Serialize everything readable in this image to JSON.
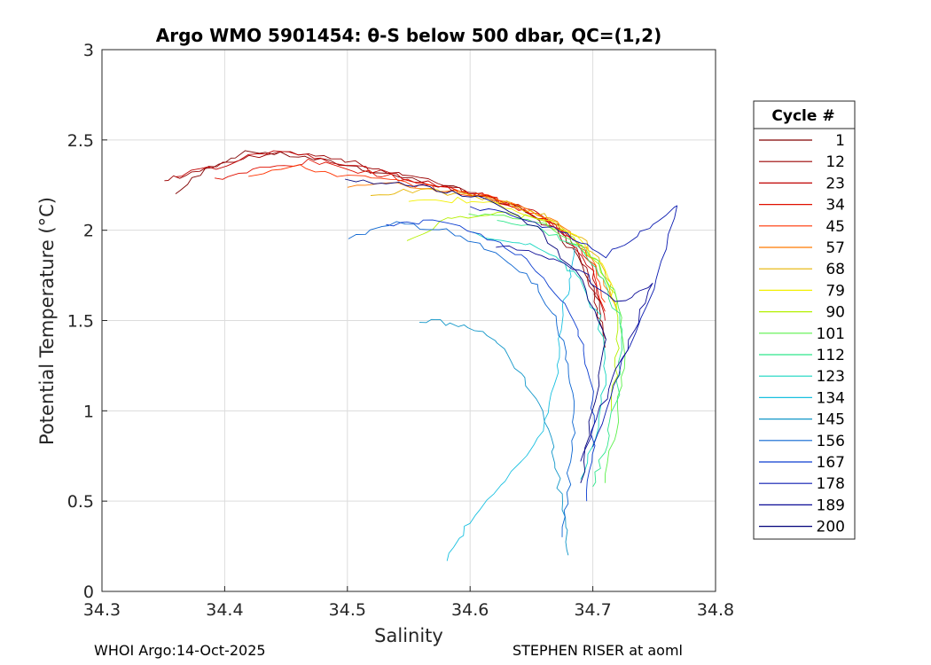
{
  "footer": {
    "left": "WHOI Argo:14-Oct-2025",
    "right": "STEPHEN RISER at aoml"
  },
  "chart_data": {
    "type": "line",
    "title": "Argo WMO 5901454: θ-S below 500 dbar,  QC=(1,2)",
    "xlabel": "Salinity",
    "ylabel": "Potential Temperature (°C)",
    "xlim": [
      34.3,
      34.8
    ],
    "ylim": [
      0,
      3
    ],
    "xticks": [
      "34.3",
      "34.4",
      "34.5",
      "34.6",
      "34.7",
      "34.8"
    ],
    "yticks": [
      "0",
      "0.5",
      "1",
      "1.5",
      "2",
      "2.5",
      "3"
    ],
    "grid": true,
    "legend": {
      "title": "Cycle #",
      "placement": "right-outside",
      "entries": [
        {
          "label": "1",
          "color": "#800000"
        },
        {
          "label": "12",
          "color": "#9a0000"
        },
        {
          "label": "23",
          "color": "#c00000"
        },
        {
          "label": "34",
          "color": "#e01000"
        },
        {
          "label": "45",
          "color": "#ff3300"
        },
        {
          "label": "57",
          "color": "#ff7a00"
        },
        {
          "label": "68",
          "color": "#e6b400"
        },
        {
          "label": "79",
          "color": "#f2f000"
        },
        {
          "label": "90",
          "color": "#b4f000"
        },
        {
          "label": "101",
          "color": "#5af04a"
        },
        {
          "label": "112",
          "color": "#2ee68c"
        },
        {
          "label": "123",
          "color": "#16d6c0"
        },
        {
          "label": "134",
          "color": "#18c0e0"
        },
        {
          "label": "145",
          "color": "#1096c8"
        },
        {
          "label": "156",
          "color": "#0a64d0"
        },
        {
          "label": "167",
          "color": "#0a3cd0"
        },
        {
          "label": "178",
          "color": "#0a1ab0"
        },
        {
          "label": "189",
          "color": "#0a0a96"
        },
        {
          "label": "200",
          "color": "#00007a"
        }
      ]
    },
    "series": [
      {
        "name": "1",
        "color": "#800000",
        "s": [
          34.36,
          34.39,
          34.42,
          34.46,
          34.5,
          34.54,
          34.58,
          34.61,
          34.64,
          34.67,
          34.69,
          34.705,
          34.71
        ],
        "t": [
          2.2,
          2.36,
          2.44,
          2.41,
          2.36,
          2.3,
          2.24,
          2.19,
          2.12,
          2.0,
          1.84,
          1.62,
          1.35
        ]
      },
      {
        "name": "12",
        "color": "#9a0000",
        "s": [
          34.35,
          34.38,
          34.42,
          34.46,
          34.5,
          34.54,
          34.58,
          34.61,
          34.64,
          34.67,
          34.69,
          34.7,
          34.71
        ],
        "t": [
          2.27,
          2.33,
          2.4,
          2.43,
          2.38,
          2.32,
          2.25,
          2.2,
          2.13,
          2.02,
          1.86,
          1.65,
          1.4
        ]
      },
      {
        "name": "23",
        "color": "#c00000",
        "s": [
          34.36,
          34.4,
          34.44,
          34.48,
          34.52,
          34.56,
          34.6,
          34.63,
          34.66,
          34.68,
          34.7,
          34.71
        ],
        "t": [
          2.3,
          2.36,
          2.45,
          2.4,
          2.33,
          2.27,
          2.21,
          2.16,
          2.08,
          1.96,
          1.78,
          1.5
        ]
      },
      {
        "name": "34",
        "color": "#e01000",
        "s": [
          34.39,
          34.43,
          34.47,
          34.51,
          34.55,
          34.59,
          34.62,
          34.65,
          34.68,
          34.7,
          34.71
        ],
        "t": [
          2.28,
          2.34,
          2.38,
          2.33,
          2.28,
          2.22,
          2.17,
          2.09,
          1.97,
          1.8,
          1.55
        ]
      },
      {
        "name": "45",
        "color": "#ff3300",
        "s": [
          34.42,
          34.46,
          34.5,
          34.54,
          34.58,
          34.62,
          34.65,
          34.68,
          34.7,
          34.71
        ],
        "t": [
          2.31,
          2.35,
          2.3,
          2.27,
          2.22,
          2.18,
          2.1,
          1.99,
          1.82,
          1.6
        ]
      },
      {
        "name": "57",
        "color": "#ff7a00",
        "s": [
          34.5,
          34.54,
          34.58,
          34.62,
          34.65,
          34.68,
          34.7,
          34.715
        ],
        "t": [
          2.24,
          2.25,
          2.22,
          2.18,
          2.11,
          2.0,
          1.84,
          1.62
        ]
      },
      {
        "name": "68",
        "color": "#e6b400",
        "s": [
          34.52,
          34.56,
          34.6,
          34.63,
          34.66,
          34.69,
          34.71,
          34.72
        ],
        "t": [
          2.2,
          2.22,
          2.19,
          2.15,
          2.08,
          1.96,
          1.78,
          1.55
        ]
      },
      {
        "name": "79",
        "color": "#f2f000",
        "s": [
          34.55,
          34.59,
          34.63,
          34.66,
          34.69,
          34.71,
          34.72
        ],
        "t": [
          2.15,
          2.17,
          2.13,
          2.06,
          1.95,
          1.78,
          1.55
        ]
      },
      {
        "name": "90",
        "color": "#b4f000",
        "s": [
          34.55,
          34.58,
          34.62,
          34.65,
          34.68,
          34.7,
          34.72,
          34.72,
          34.715
        ],
        "t": [
          1.94,
          2.06,
          2.1,
          2.07,
          1.98,
          1.84,
          1.62,
          1.3,
          1.0
        ]
      },
      {
        "name": "101",
        "color": "#5af04a",
        "s": [
          34.6,
          34.64,
          34.67,
          34.7,
          34.72,
          34.725,
          34.72,
          34.71
        ],
        "t": [
          2.08,
          2.07,
          2.01,
          1.86,
          1.62,
          1.3,
          0.95,
          0.6
        ]
      },
      {
        "name": "112",
        "color": "#2ee68c",
        "s": [
          34.62,
          34.66,
          34.69,
          34.71,
          34.725,
          34.72,
          34.71,
          34.7
        ],
        "t": [
          2.05,
          2.0,
          1.9,
          1.72,
          1.45,
          1.1,
          0.8,
          0.58
        ]
      },
      {
        "name": "123",
        "color": "#16d6c0",
        "s": [
          34.6,
          34.64,
          34.67,
          34.69,
          34.705,
          34.71,
          34.705,
          34.69
        ],
        "t": [
          1.98,
          1.94,
          1.86,
          1.72,
          1.52,
          1.2,
          0.9,
          0.62
        ]
      },
      {
        "name": "134",
        "color": "#18c0e0",
        "s": [
          34.58,
          34.6,
          34.63,
          34.66,
          34.67,
          34.675,
          34.68,
          34.685
        ],
        "t": [
          0.18,
          0.38,
          0.62,
          0.9,
          1.2,
          1.5,
          1.72,
          1.9
        ]
      },
      {
        "name": "145",
        "color": "#1096c8",
        "s": [
          34.56,
          34.59,
          34.62,
          34.64,
          34.66,
          34.67,
          34.675,
          34.68
        ],
        "t": [
          1.5,
          1.48,
          1.4,
          1.22,
          1.0,
          0.72,
          0.45,
          0.2
        ]
      },
      {
        "name": "156",
        "color": "#0a64d0",
        "s": [
          34.5,
          34.54,
          34.58,
          34.62,
          34.65,
          34.67,
          34.68,
          34.685,
          34.68,
          34.675
        ],
        "t": [
          1.95,
          2.04,
          2.0,
          1.88,
          1.72,
          1.52,
          1.25,
          0.95,
          0.6,
          0.3
        ]
      },
      {
        "name": "167",
        "color": "#0a3cd0",
        "s": [
          34.53,
          34.57,
          34.61,
          34.64,
          34.67,
          34.69,
          34.7,
          34.7,
          34.695
        ],
        "t": [
          2.02,
          2.05,
          1.98,
          1.86,
          1.66,
          1.42,
          1.12,
          0.82,
          0.5
        ]
      },
      {
        "name": "178",
        "color": "#0a1ab0",
        "s": [
          34.6,
          34.64,
          34.68,
          34.71,
          34.74,
          34.77,
          34.75,
          34.72,
          34.7
        ],
        "t": [
          2.12,
          2.08,
          1.98,
          1.86,
          1.98,
          2.15,
          1.66,
          1.2,
          0.8
        ]
      },
      {
        "name": "189",
        "color": "#0a0a96",
        "s": [
          34.62,
          34.66,
          34.69,
          34.72,
          34.75,
          34.73,
          34.71,
          34.69
        ],
        "t": [
          1.92,
          1.86,
          1.78,
          1.6,
          1.7,
          1.4,
          1.08,
          0.72
        ]
      },
      {
        "name": "200",
        "color": "#00007a",
        "s": [
          34.5,
          34.54,
          34.58,
          34.62,
          34.66,
          34.69,
          34.71,
          34.7,
          34.69
        ],
        "t": [
          2.28,
          2.26,
          2.22,
          2.16,
          1.98,
          1.72,
          1.4,
          1.0,
          0.6
        ]
      }
    ]
  }
}
